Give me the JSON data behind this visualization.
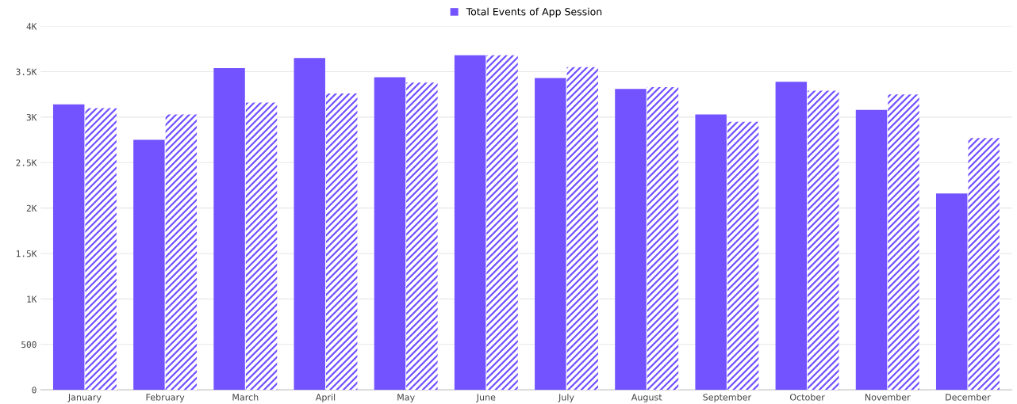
{
  "chart_data": {
    "type": "bar",
    "categories": [
      "January",
      "February",
      "March",
      "April",
      "May",
      "June",
      "July",
      "August",
      "September",
      "October",
      "November",
      "December"
    ],
    "series": [
      {
        "name": "Total Events of App Session",
        "color": "#7352ff",
        "values": [
          3140,
          2750,
          3540,
          3650,
          3440,
          3680,
          3430,
          3310,
          3030,
          3390,
          3080,
          2160
        ]
      },
      {
        "color": "#7352ff",
        "values": [
          3100,
          3030,
          3160,
          3260,
          3380,
          3680,
          3550,
          3330,
          2950,
          3290,
          3250,
          2770
        ]
      }
    ],
    "ylim": [
      0,
      4000
    ],
    "yticks": [
      0,
      500,
      {
        "value": 1000,
        "label": "1K"
      },
      {
        "value": 1500,
        "label": "1.5K"
      },
      {
        "value": 2000,
        "label": "2K"
      },
      {
        "value": 2500,
        "label": "2.5K"
      },
      {
        "value": 3000,
        "label": "3K"
      },
      {
        "value": 3500,
        "label": "3.5K"
      },
      {
        "value": 4000,
        "label": "4K"
      }
    ],
    "grid": "y",
    "legend": "top"
  }
}
